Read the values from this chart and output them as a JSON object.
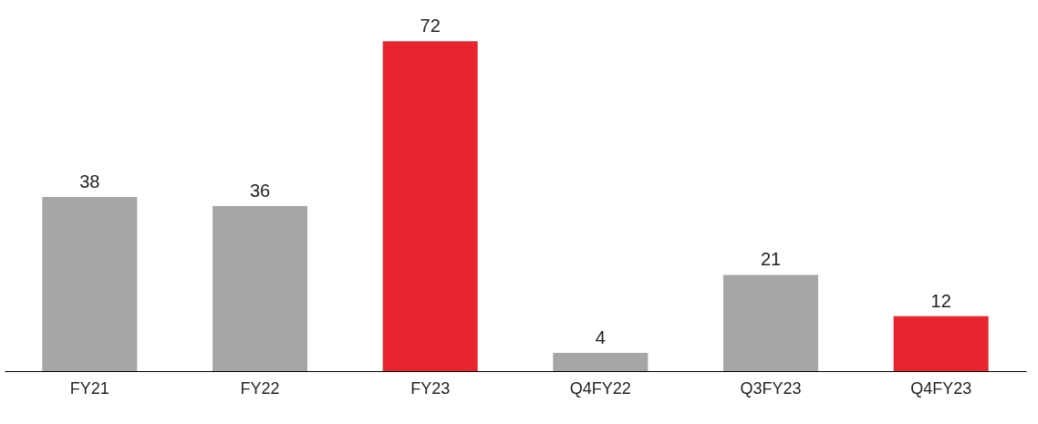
{
  "chart_data": {
    "type": "bar",
    "categories": [
      "FY21",
      "FY22",
      "FY23",
      "Q4FY22",
      "Q3FY23",
      "Q4FY23"
    ],
    "values": [
      38,
      36,
      72,
      4,
      21,
      12
    ],
    "colors": [
      "#a6a6a6",
      "#a6a6a6",
      "#e8242f",
      "#a6a6a6",
      "#a6a6a6",
      "#e8242f"
    ],
    "data_labels": true,
    "grid": false
  }
}
